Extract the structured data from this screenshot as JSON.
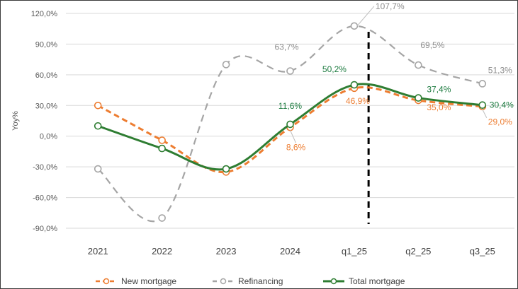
{
  "chart_data": {
    "type": "line",
    "title": "",
    "xlabel": "",
    "ylabel": "Yoy%",
    "ylim": [
      -90,
      120
    ],
    "yticks": [
      -90,
      -60,
      -30,
      0,
      30,
      60,
      90,
      120
    ],
    "ytick_labels": [
      "-90,0%",
      "-60,0%",
      "-30,0%",
      "0,0%",
      "30,0%",
      "60,0%",
      "90,0%",
      "120,0%"
    ],
    "categories": [
      "2021",
      "2022",
      "2023",
      "2024",
      "q1_25",
      "q2_25",
      "q3_25"
    ],
    "grid": "horizontal",
    "legend_position": "bottom",
    "divider_after_category": "q1_25",
    "series": [
      {
        "name": "New mortgage",
        "color": "#ED7D31",
        "style": "dashed",
        "values": [
          30,
          -4,
          -35,
          8.6,
          46.9,
          35.0,
          29.0
        ],
        "labels": [
          null,
          null,
          null,
          "8,6%",
          "46,9%",
          "35,0%",
          "29,0%"
        ]
      },
      {
        "name": "Refinancing",
        "color": "#A5A5A5",
        "style": "dashed",
        "values": [
          -32,
          -80,
          70,
          63.7,
          107.7,
          69.5,
          51.3
        ],
        "labels": [
          null,
          null,
          null,
          "63,7%",
          "107,7%",
          "69,5%",
          "51,3%"
        ]
      },
      {
        "name": "Total mortgage",
        "color": "#2E7D32",
        "style": "solid",
        "values": [
          10,
          -12,
          -32,
          11.6,
          50.2,
          37.4,
          30.4
        ],
        "labels": [
          null,
          null,
          null,
          "11,6%",
          "50,2%",
          "37,4%",
          "30,4%"
        ]
      }
    ]
  }
}
